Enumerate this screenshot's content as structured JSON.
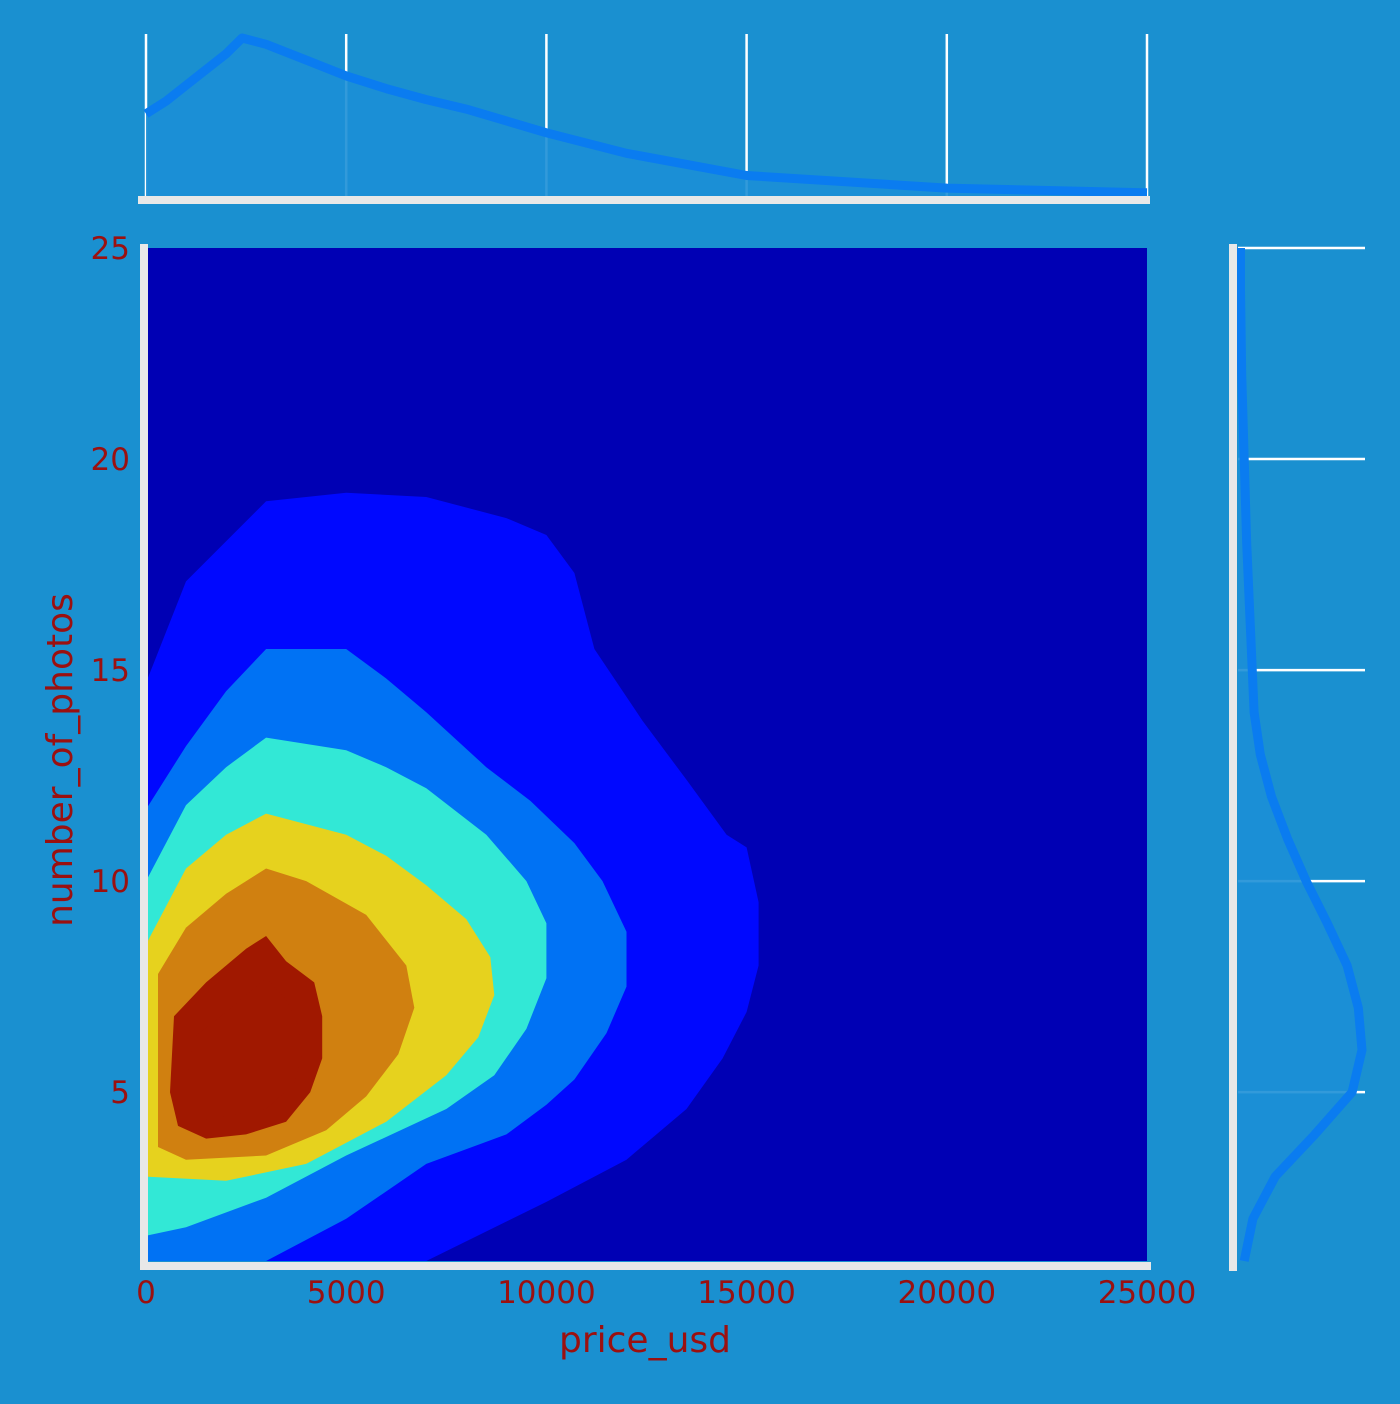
{
  "colors": {
    "background": "#1a90d0",
    "axis_text": "#9b1010",
    "axis_line": "#e8e8e8",
    "grid": "#ffffff",
    "marginal_fill": "#1c8fd6",
    "marginal_line": "#0a7cf0",
    "levels": [
      "#0000b4",
      "#0008ff",
      "#0072f4",
      "#32e8d6",
      "#e6d21e",
      "#d08010",
      "#a01800"
    ]
  },
  "chart_data": {
    "type": "contour",
    "title": "",
    "xlabel": "price_usd",
    "ylabel": "number_of_photos",
    "xlim": [
      0,
      25000
    ],
    "ylim": [
      1,
      25
    ],
    "x_ticks": [
      0,
      5000,
      10000,
      15000,
      20000,
      25000
    ],
    "y_ticks": [
      5,
      10,
      15,
      20,
      25
    ],
    "x_tick_labels": [
      "0",
      "5000",
      "10000",
      "15000",
      "20000",
      "25000"
    ],
    "y_tick_labels": [
      "5",
      "10",
      "15",
      "20",
      "25"
    ],
    "grid": false,
    "contour_levels": [
      {
        "level": 1,
        "points": [
          [
            0,
            14.7
          ],
          [
            1000,
            17.1
          ],
          [
            3000,
            19.0
          ],
          [
            5000,
            19.2
          ],
          [
            7000,
            19.1
          ],
          [
            9000,
            18.6
          ],
          [
            10000,
            18.2
          ],
          [
            10700,
            17.3
          ],
          [
            11200,
            15.5
          ],
          [
            12400,
            13.8
          ],
          [
            13500,
            12.4
          ],
          [
            14500,
            11.1
          ],
          [
            15000,
            10.8
          ],
          [
            15300,
            9.5
          ],
          [
            15300,
            8.0
          ],
          [
            15000,
            6.9
          ],
          [
            14400,
            5.8
          ],
          [
            13500,
            4.6
          ],
          [
            12000,
            3.4
          ],
          [
            10000,
            2.4
          ],
          [
            7000,
            1.0
          ],
          [
            0,
            1.0
          ]
        ]
      },
      {
        "level": 2,
        "points": [
          [
            0,
            11.7
          ],
          [
            1000,
            13.2
          ],
          [
            2000,
            14.5
          ],
          [
            3000,
            15.5
          ],
          [
            5000,
            15.5
          ],
          [
            6000,
            14.8
          ],
          [
            7000,
            14.0
          ],
          [
            8500,
            12.7
          ],
          [
            9600,
            11.9
          ],
          [
            10700,
            10.9
          ],
          [
            11400,
            10.0
          ],
          [
            12000,
            8.8
          ],
          [
            12000,
            7.5
          ],
          [
            11500,
            6.4
          ],
          [
            10700,
            5.3
          ],
          [
            10000,
            4.7
          ],
          [
            9000,
            4.0
          ],
          [
            7000,
            3.3
          ],
          [
            5000,
            2.0
          ],
          [
            3000,
            1.0
          ],
          [
            0,
            1.0
          ]
        ]
      },
      {
        "level": 3,
        "points": [
          [
            0,
            10.0
          ],
          [
            1000,
            11.8
          ],
          [
            2000,
            12.7
          ],
          [
            3000,
            13.4
          ],
          [
            5000,
            13.1
          ],
          [
            6000,
            12.7
          ],
          [
            7000,
            12.2
          ],
          [
            8500,
            11.1
          ],
          [
            9500,
            10.0
          ],
          [
            10000,
            9.0
          ],
          [
            10000,
            7.7
          ],
          [
            9500,
            6.5
          ],
          [
            8700,
            5.4
          ],
          [
            7500,
            4.6
          ],
          [
            5000,
            3.5
          ],
          [
            3000,
            2.5
          ],
          [
            1000,
            1.8
          ],
          [
            0,
            1.6
          ]
        ]
      },
      {
        "level": 4,
        "points": [
          [
            0,
            8.5
          ],
          [
            1000,
            10.3
          ],
          [
            2000,
            11.1
          ],
          [
            3000,
            11.6
          ],
          [
            5000,
            11.1
          ],
          [
            6000,
            10.6
          ],
          [
            7000,
            9.9
          ],
          [
            8000,
            9.1
          ],
          [
            8600,
            8.2
          ],
          [
            8700,
            7.3
          ],
          [
            8300,
            6.3
          ],
          [
            7500,
            5.4
          ],
          [
            6000,
            4.3
          ],
          [
            4000,
            3.3
          ],
          [
            2000,
            2.9
          ],
          [
            0,
            3.0
          ]
        ]
      },
      {
        "level": 5,
        "points": [
          [
            300,
            7.8
          ],
          [
            1000,
            8.9
          ],
          [
            2000,
            9.7
          ],
          [
            3000,
            10.3
          ],
          [
            4000,
            10.0
          ],
          [
            5500,
            9.2
          ],
          [
            6500,
            8.0
          ],
          [
            6700,
            7.0
          ],
          [
            6300,
            5.9
          ],
          [
            5500,
            4.9
          ],
          [
            4500,
            4.1
          ],
          [
            3000,
            3.5
          ],
          [
            1000,
            3.4
          ],
          [
            300,
            3.7
          ]
        ]
      },
      {
        "level": 6,
        "points": [
          [
            700,
            6.8
          ],
          [
            1500,
            7.6
          ],
          [
            2500,
            8.4
          ],
          [
            3000,
            8.7
          ],
          [
            3500,
            8.1
          ],
          [
            4200,
            7.6
          ],
          [
            4400,
            6.8
          ],
          [
            4400,
            5.8
          ],
          [
            4100,
            5.0
          ],
          [
            3500,
            4.3
          ],
          [
            2500,
            4.0
          ],
          [
            1500,
            3.9
          ],
          [
            800,
            4.2
          ],
          [
            600,
            5.0
          ]
        ]
      },
      {
        "level": 7,
        "points": [
          [
            1200,
            6.3
          ],
          [
            2000,
            6.9
          ],
          [
            3000,
            7.7
          ],
          [
            3500,
            7.2
          ],
          [
            3800,
            6.6
          ],
          [
            3900,
            5.9
          ],
          [
            3700,
            5.2
          ],
          [
            3000,
            4.6
          ],
          [
            1200,
            4.3
          ],
          [
            1000,
            5.2
          ]
        ]
      }
    ],
    "marginal_x": {
      "x": [
        0,
        500,
        1000,
        2000,
        2400,
        3000,
        4000,
        5000,
        6000,
        7000,
        8000,
        10000,
        12000,
        15000,
        20000,
        25000
      ],
      "density": [
        0.52,
        0.6,
        0.7,
        0.9,
        1.0,
        0.96,
        0.86,
        0.76,
        0.68,
        0.61,
        0.55,
        0.4,
        0.27,
        0.13,
        0.05,
        0.02
      ]
    },
    "marginal_y": {
      "y": [
        1,
        2,
        3,
        4,
        5,
        6,
        7,
        8,
        9,
        10,
        11,
        12,
        13,
        14,
        16,
        18,
        20,
        22,
        24,
        25
      ],
      "density": [
        0.05,
        0.12,
        0.3,
        0.62,
        0.92,
        1.0,
        0.97,
        0.88,
        0.72,
        0.55,
        0.4,
        0.27,
        0.18,
        0.13,
        0.1,
        0.07,
        0.05,
        0.03,
        0.02,
        0.02
      ]
    }
  }
}
